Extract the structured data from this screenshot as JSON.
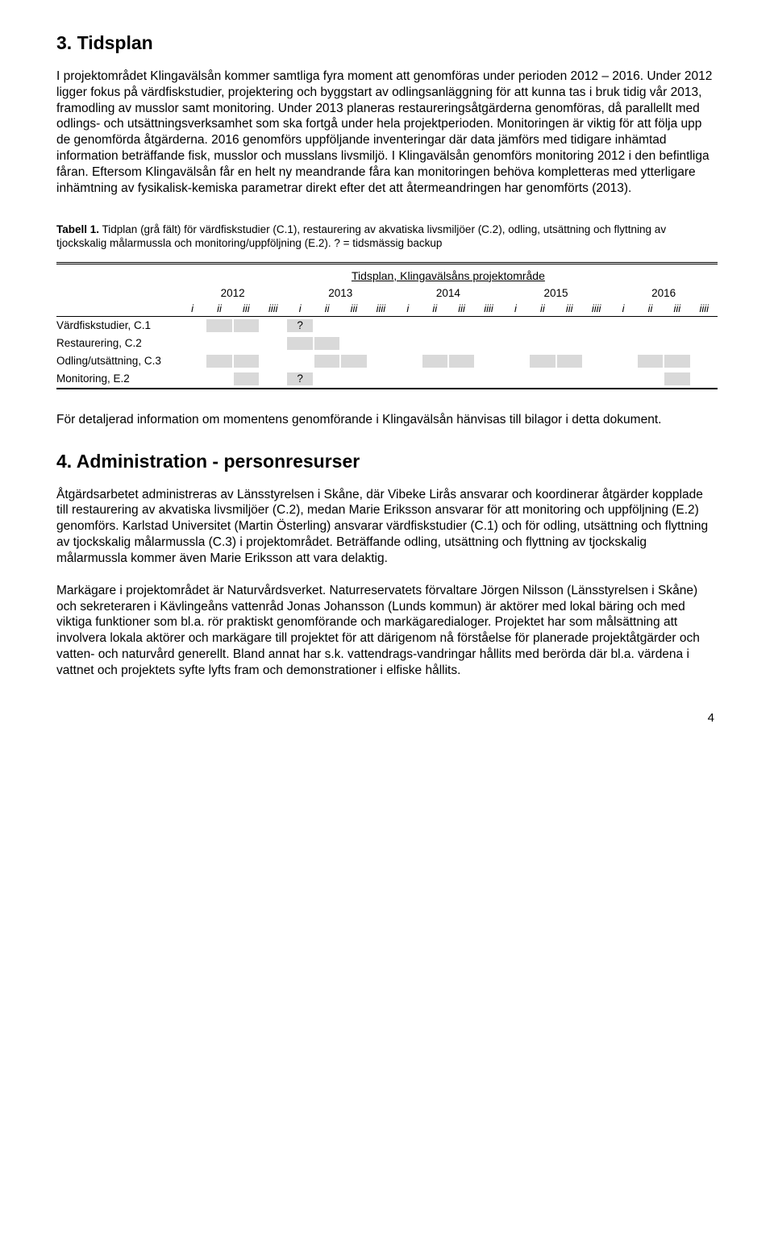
{
  "section3": {
    "heading": "3. Tidsplan",
    "paragraph": "I projektområdet Klingavälsån kommer samtliga fyra moment att genomföras under perioden 2012 – 2016. Under 2012 ligger fokus på värdfiskstudier, projektering och byggstart av odlingsanläggning för att kunna tas i bruk tidig vår 2013, framodling av musslor samt monitoring. Under 2013 planeras restaureringsåtgärderna genomföras, då parallellt med odlings- och utsättningsverksamhet som ska fortgå under hela projektperioden. Monitoringen är viktig för att följa upp de genomförda åtgärderna. 2016 genomförs uppföljande inventeringar där data jämförs med tidigare inhämtad information beträffande fisk, musslor och musslans livsmiljö. I Klingavälsån genomförs monitoring 2012 i den befintliga fåran. Eftersom Klingavälsån får en helt ny meandrande fåra kan monitoringen behöva kompletteras med ytterligare inhämtning av fysikalisk-kemiska parametrar direkt efter det att återmeandringen har genomförts (2013)."
  },
  "table1": {
    "caption_bold": "Tabell 1.",
    "caption_rest": " Tidplan (grå fält) för värdfiskstudier (C.1), restaurering av akvatiska livsmiljöer (C.2), odling, utsättning och flyttning av tjockskalig målarmussla och monitoring/uppföljning (E.2). ? = tidsmässig backup",
    "title": "Tidsplan, Klingavälsåns projektområde",
    "years": [
      "2012",
      "2013",
      "2014",
      "2015",
      "2016"
    ],
    "quarters": [
      "i",
      "ii",
      "iii",
      "iiii"
    ],
    "rows": [
      {
        "label": "Värdfiskstudier, C.1",
        "cells": [
          "",
          "f",
          "f",
          "",
          "q?",
          "",
          "",
          "",
          "",
          "",
          "",
          "",
          "",
          "",
          "",
          "",
          "",
          "",
          "",
          ""
        ]
      },
      {
        "label": "Restaurering, C.2",
        "cells": [
          "",
          "",
          "",
          "",
          "f",
          "f",
          "",
          "",
          "",
          "",
          "",
          "",
          "",
          "",
          "",
          "",
          "",
          "",
          "",
          ""
        ]
      },
      {
        "label": "Odling/utsättning, C.3",
        "cells": [
          "",
          "f",
          "f",
          "",
          "",
          "f",
          "f",
          "",
          "",
          "f",
          "f",
          "",
          "",
          "f",
          "f",
          "",
          "",
          "f",
          "f",
          ""
        ]
      },
      {
        "label": "Monitoring, E.2",
        "cells": [
          "",
          "",
          "f",
          "",
          "q?",
          "",
          "",
          "",
          "",
          "",
          "",
          "",
          "",
          "",
          "",
          "",
          "",
          "",
          "f",
          ""
        ]
      }
    ]
  },
  "afterTable": {
    "text": "För detaljerad information om momentens genomförande i Klingavälsån hänvisas till bilagor i detta dokument."
  },
  "section4": {
    "heading": "4. Administration - personresurser",
    "para1": "Åtgärdsarbetet administreras av Länsstyrelsen i Skåne, där Vibeke Lirås ansvarar och koordinerar åtgärder kopplade till restaurering av akvatiska livsmiljöer (C.2), medan Marie Eriksson ansvarar för att monitoring och uppföljning (E.2) genomförs. Karlstad Universitet (Martin Österling) ansvarar värdfiskstudier (C.1) och för odling, utsättning och flyttning av tjockskalig målarmussla (C.3) i projektområdet. Beträffande odling, utsättning och flyttning av tjockskalig målarmussla kommer även Marie Eriksson att vara delaktig.",
    "para2": "Markägare i projektområdet är Naturvårdsverket. Naturreservatets förvaltare Jörgen Nilsson (Länsstyrelsen i Skåne) och sekreteraren i Kävlingeåns vattenråd Jonas Johansson (Lunds kommun) är aktörer med lokal bäring och med viktiga funktioner som bl.a. rör praktiskt genomförande och markägaredialoger. Projektet har som målsättning att involvera lokala aktörer och markägare till projektet för att därigenom nå förståelse för planerade projektåtgärder och vatten- och naturvård generellt. Bland annat har s.k. vattendrags-vandringar hållits med berörda där bl.a. värdena i vattnet och projektets syfte lyfts fram och demonstrationer i elfiske hållits."
  },
  "footer": {
    "page": "4"
  }
}
